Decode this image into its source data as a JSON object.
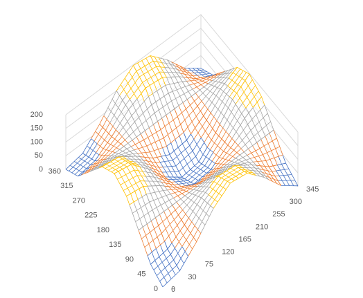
{
  "chart_data": {
    "type": "surface",
    "categories": [
      "θ",
      "30",
      "75",
      "120",
      "165",
      "210",
      "255",
      "300",
      "345"
    ],
    "series_labels": [
      0,
      45,
      90,
      135,
      180,
      225,
      270,
      315,
      360
    ],
    "values": [
      [
        0,
        13,
        74,
        150,
        197,
        187,
        126,
        50,
        3
      ],
      [
        29,
        39,
        82,
        135,
        168,
        161,
        118,
        65,
        32
      ],
      [
        100,
        100,
        100,
        100,
        100,
        100,
        100,
        100,
        100
      ],
      [
        171,
        161,
        118,
        65,
        32,
        39,
        82,
        135,
        168
      ],
      [
        200,
        187,
        126,
        50,
        3,
        13,
        74,
        150,
        197
      ],
      [
        171,
        161,
        118,
        65,
        32,
        39,
        82,
        135,
        168
      ],
      [
        100,
        100,
        100,
        100,
        100,
        100,
        100,
        100,
        100
      ],
      [
        29,
        39,
        82,
        135,
        168,
        161,
        118,
        65,
        32
      ],
      [
        0,
        13,
        74,
        150,
        197,
        187,
        126,
        50,
        3
      ]
    ],
    "zlim": [
      0,
      200
    ],
    "zticks": [
      0,
      50,
      100,
      150,
      200
    ],
    "band_colors": [
      "#4472c4",
      "#ed7d31",
      "#a5a5a5",
      "#ffc000"
    ]
  }
}
